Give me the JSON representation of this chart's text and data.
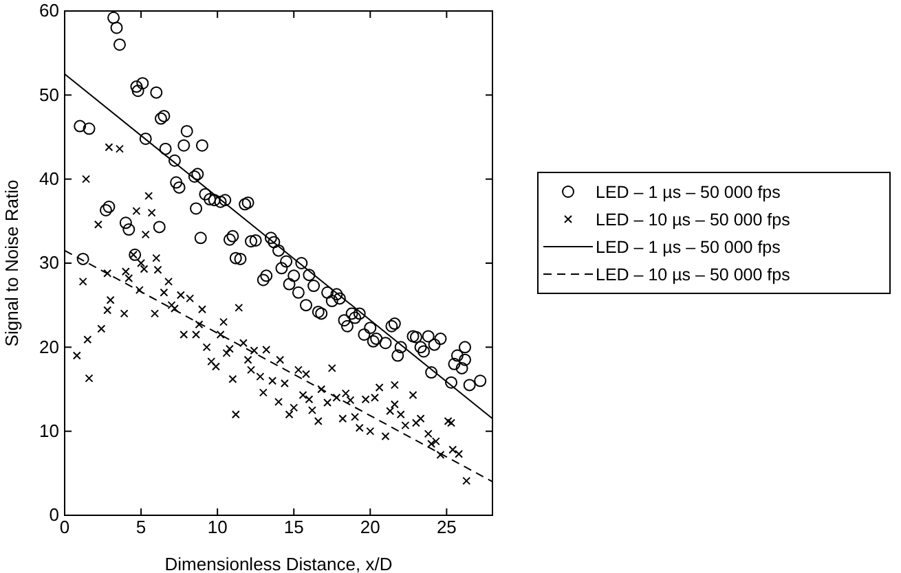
{
  "chart_data": {
    "type": "scatter",
    "xlabel": "Dimensionless Distance, x/D",
    "ylabel": "Signal to Noise Ratio",
    "xlim": [
      0,
      28
    ],
    "ylim": [
      0,
      60
    ],
    "xticks": [
      0,
      5,
      10,
      15,
      20,
      25
    ],
    "yticks": [
      0,
      10,
      20,
      30,
      40,
      50,
      60
    ],
    "grid": false,
    "legend": "right",
    "series": [
      {
        "name": "LED – 1 µs – 50 000 fps",
        "marker": "circle",
        "color": "#000000",
        "x": [
          1.0,
          1.6,
          1.2,
          3.2,
          3.4,
          3.6,
          2.7,
          2.9,
          4.7,
          4.8,
          5.1,
          5.3,
          4.0,
          4.2,
          4.6,
          6.0,
          6.3,
          6.5,
          6.2,
          6.6,
          7.2,
          7.3,
          7.5,
          7.8,
          8.0,
          8.5,
          8.7,
          8.6,
          8.9,
          9.0,
          9.2,
          9.5,
          9.8,
          10.2,
          10.5,
          10.8,
          11.0,
          11.2,
          11.5,
          11.8,
          12.0,
          12.2,
          12.5,
          13.0,
          13.2,
          13.5,
          13.7,
          14.0,
          14.2,
          14.5,
          14.7,
          15.0,
          15.3,
          15.5,
          15.8,
          16.0,
          16.3,
          16.6,
          16.8,
          17.2,
          17.5,
          17.8,
          18.0,
          18.3,
          18.5,
          18.8,
          19.0,
          19.3,
          19.6,
          20.0,
          20.2,
          20.4,
          21.0,
          21.4,
          21.6,
          21.8,
          22.0,
          22.8,
          23.0,
          23.3,
          23.5,
          23.8,
          24.0,
          24.2,
          24.6,
          25.3,
          25.5,
          25.7,
          26.0,
          26.2,
          26.5,
          27.2,
          26.2
        ],
        "values": [
          46.3,
          46,
          30.5,
          59.2,
          58,
          56,
          36.3,
          36.7,
          51,
          50.5,
          51.4,
          44.8,
          34.8,
          34,
          31,
          50.3,
          47.2,
          47.5,
          34.3,
          43.6,
          42.2,
          39.6,
          39,
          44,
          45.7,
          40.3,
          40.6,
          36.5,
          33,
          44,
          38.2,
          37.6,
          37.5,
          37.3,
          37.5,
          32.8,
          33.2,
          30.6,
          30.5,
          37,
          37.2,
          32.6,
          32.7,
          28,
          28.5,
          33,
          32.5,
          31.5,
          29.4,
          30.2,
          27.5,
          28.5,
          26.5,
          30,
          25,
          28.6,
          27.3,
          24.2,
          24,
          26.5,
          25.5,
          26.3,
          25.8,
          23.2,
          22.5,
          24,
          23.5,
          24,
          21.5,
          22.3,
          20.7,
          21,
          20.5,
          22.5,
          22.8,
          19,
          20,
          21.3,
          21.2,
          20,
          19.5,
          21.3,
          17,
          20.3,
          21,
          15.8,
          18,
          19,
          17.5,
          20,
          15.5,
          16,
          18.5
        ]
      },
      {
        "name": "LED – 10 µs – 50 000 fps",
        "marker": "cross",
        "color": "#000000",
        "x": [
          0.8,
          1.2,
          1.4,
          1.5,
          1.6,
          2.2,
          2.4,
          2.8,
          2.9,
          2.8,
          3.0,
          3.6,
          3.9,
          4.0,
          4.2,
          4.5,
          4.7,
          4.9,
          5.0,
          5.2,
          5.3,
          5.5,
          5.7,
          5.9,
          6.0,
          6.1,
          6.5,
          6.8,
          7.0,
          7.2,
          7.6,
          7.8,
          8.2,
          8.6,
          8.8,
          9.0,
          9.3,
          9.6,
          9.9,
          10.2,
          10.4,
          10.6,
          10.8,
          11.0,
          11.4,
          11.7,
          12.0,
          12.2,
          12.4,
          12.8,
          13.2,
          13.6,
          14.0,
          14.1,
          14.4,
          14.7,
          15.0,
          15.3,
          15.6,
          16.0,
          16.2,
          16.6,
          16.8,
          17.2,
          17.5,
          17.8,
          18.2,
          18.4,
          18.7,
          19.0,
          19.3,
          19.7,
          20.0,
          20.3,
          20.6,
          21.0,
          21.3,
          21.6,
          22.0,
          22.3,
          22.8,
          23.0,
          23.3,
          23.8,
          24.0,
          24.3,
          24.6,
          25.1,
          25.4,
          25.8,
          26.3,
          11.2,
          13.0,
          15.8,
          21.6,
          25.3
        ],
        "values": [
          19,
          27.8,
          40,
          20.9,
          16.3,
          34.6,
          22.2,
          24.4,
          43.8,
          28.8,
          25.6,
          43.6,
          24,
          29,
          28.2,
          31,
          36.2,
          26.8,
          30,
          29.3,
          33.4,
          38,
          36,
          24,
          30.6,
          29.2,
          26.5,
          27.8,
          25,
          24.6,
          26.2,
          21.5,
          25.8,
          21.5,
          22.7,
          24.5,
          20,
          18.3,
          17.7,
          21.5,
          23,
          19.3,
          19.8,
          16.2,
          24.7,
          20.5,
          18.5,
          17.3,
          19.6,
          16.5,
          19.7,
          16,
          13.5,
          18.5,
          15.7,
          12,
          12.8,
          17.3,
          14.3,
          13.8,
          12.5,
          11.2,
          15,
          13.4,
          17.5,
          14,
          11.5,
          14.5,
          13.7,
          11.7,
          10.4,
          13.8,
          10,
          14,
          15.2,
          9.4,
          12.4,
          13.2,
          12,
          10.7,
          14.3,
          11,
          11.5,
          9.7,
          8.5,
          8.8,
          7.2,
          11.2,
          7.8,
          7.3,
          4.1,
          12,
          14.6,
          16.8,
          15.5,
          11
        ]
      },
      {
        "name": "LED – 1 µs – 50 000 fps",
        "type": "line",
        "line_style": "solid",
        "color": "#000000",
        "x": [
          0,
          28
        ],
        "values": [
          52.5,
          11.5
        ]
      },
      {
        "name": "LED – 10 µs – 50 000 fps",
        "type": "line",
        "line_style": "dashed",
        "color": "#000000",
        "x": [
          0,
          28
        ],
        "values": [
          31.5,
          4
        ]
      }
    ]
  }
}
